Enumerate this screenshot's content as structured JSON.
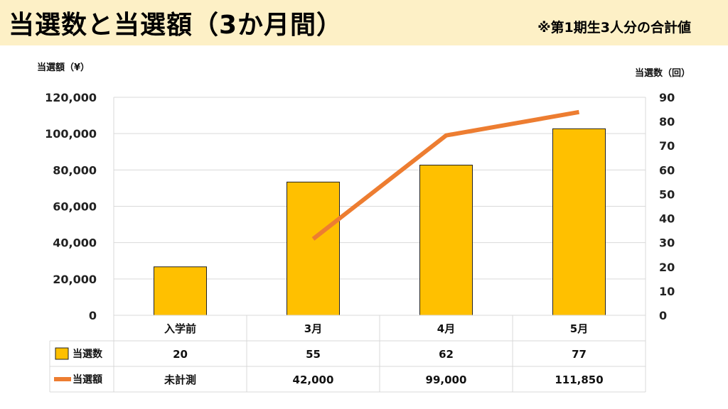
{
  "header": {
    "title": "当選数と当選額（3か月間）",
    "note": "※第1期生3人分の合計値"
  },
  "colors": {
    "header_bg": "#fdf0c6",
    "bar": "#ffc000",
    "line": "#ed7d31",
    "grid": "#d9d9d9"
  },
  "chart_data": {
    "type": "bar",
    "categories": [
      "入学前",
      "3月",
      "4月",
      "5月"
    ],
    "y_left": {
      "label": "当選額（¥）",
      "ylim": [
        0,
        120000
      ],
      "ticks": [
        "0",
        "20,000",
        "40,000",
        "60,000",
        "80,000",
        "100,000",
        "120,000"
      ]
    },
    "y_right": {
      "label": "当選数（回）",
      "ylim": [
        0,
        90
      ],
      "ticks": [
        "0",
        "10",
        "20",
        "30",
        "40",
        "50",
        "60",
        "70",
        "80",
        "90"
      ]
    },
    "series": [
      {
        "name": "当選数",
        "type": "bar",
        "axis": "right",
        "values": [
          20,
          55,
          62,
          77
        ]
      },
      {
        "name": "当選額",
        "type": "line",
        "axis": "left",
        "values": [
          null,
          42000,
          99000,
          111850
        ]
      }
    ],
    "data_table": {
      "rows": [
        {
          "name": "当選数",
          "cells": [
            "20",
            "55",
            "62",
            "77"
          ]
        },
        {
          "name": "当選額",
          "cells": [
            "未計測",
            "42,000",
            "99,000",
            "111,850"
          ]
        }
      ]
    },
    "grid": true
  }
}
